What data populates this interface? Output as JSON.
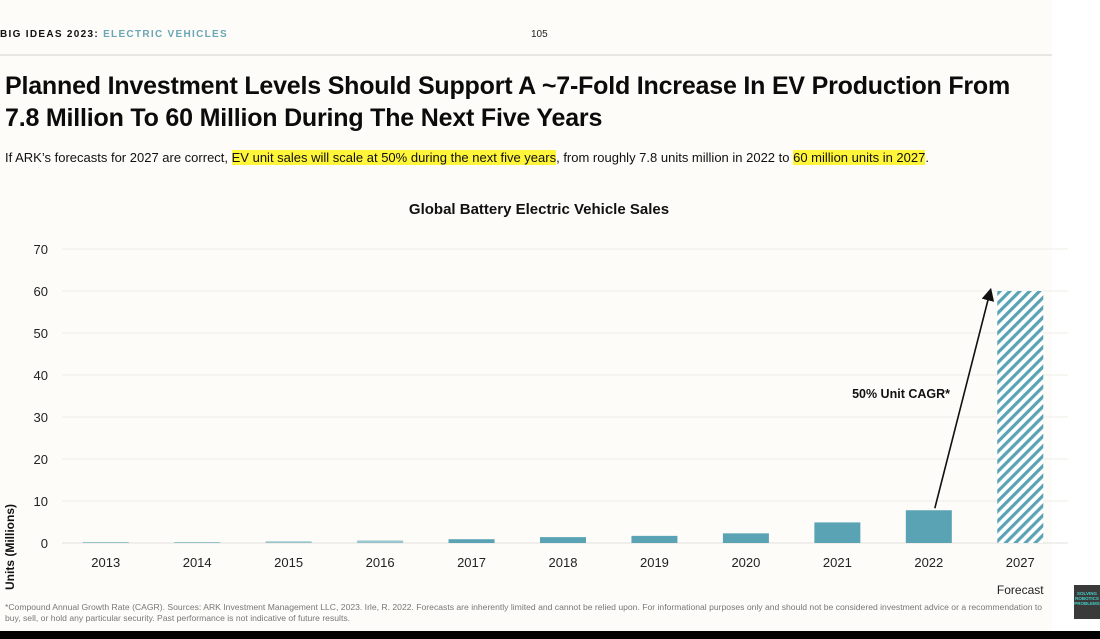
{
  "header": {
    "brand": "BIG IDEAS 2023",
    "separator": ":",
    "section": "ELECTRIC VEHICLES",
    "page_number": "105"
  },
  "title": "Planned Investment Levels Should Support A ~7-Fold Increase In EV Production From 7.8 Million To 60 Million During The Next Five Years",
  "subtitle": {
    "part1": "If ARK’s forecasts for 2027 are correct, ",
    "highlight1": "EV unit sales will scale at 50% during the next five years",
    "part2": ", from roughly 7.8 units million in 2022 to ",
    "highlight2": "60 million units in 2027",
    "part3": "."
  },
  "colors": {
    "bar": "#5aa3b4",
    "highlight": "#fff53b",
    "section_accent": "#6aa7b4"
  },
  "chart_data": {
    "type": "bar",
    "title": "Global Battery Electric Vehicle Sales",
    "xlabel": "",
    "ylabel": "Units (Millions)",
    "ylim": [
      0,
      70
    ],
    "yticks": [
      0,
      10,
      20,
      30,
      40,
      50,
      60,
      70
    ],
    "grid": true,
    "categories": [
      "2013",
      "2014",
      "2015",
      "2016",
      "2017",
      "2018",
      "2019",
      "2020",
      "2021",
      "2022",
      "2027"
    ],
    "values": [
      0.1,
      0.2,
      0.4,
      0.6,
      0.9,
      1.4,
      1.7,
      2.3,
      4.9,
      7.8,
      60
    ],
    "forecast": [
      false,
      false,
      false,
      false,
      false,
      false,
      false,
      false,
      false,
      false,
      true
    ],
    "forecast_label": "Forecast",
    "annotation": {
      "text": "50% Unit CAGR*",
      "arrow_from": {
        "category": "2022",
        "value": 7.8
      },
      "arrow_to": {
        "category": "2027",
        "value": 60
      }
    }
  },
  "footnote": "*Compound Annual Growth Rate (CAGR). Sources: ARK Investment Management LLC, 2023. Irle, R. 2022. Forecasts are inherently limited and cannot be relied upon. For informational purposes only and should not be considered investment advice or a recommendation to buy, sell, or hold any particular security. Past performance is not indicative of future results.",
  "badge": "SOLVING ROBOTICS PROBLEMS"
}
